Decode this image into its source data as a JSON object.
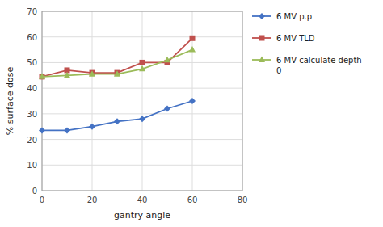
{
  "chart_data": {
    "type": "line",
    "x": [
      0,
      10,
      20,
      30,
      40,
      50,
      60
    ],
    "series": [
      {
        "name": "6 MV p.p",
        "color": "#4472C4",
        "marker": "diamond",
        "values": [
          23.5,
          23.5,
          25,
          27,
          28,
          32,
          35
        ]
      },
      {
        "name": "6 MV TLD",
        "color": "#C0504D",
        "marker": "square",
        "values": [
          44.5,
          47,
          46,
          46,
          50,
          50,
          59.5
        ]
      },
      {
        "name": "6 MV calculate depth\n0",
        "color": "#9BBB59",
        "marker": "triangle",
        "values": [
          44.5,
          45,
          45.5,
          45.5,
          47.5,
          51,
          55
        ]
      }
    ],
    "x_label": "gantry angle",
    "y_label": "% surface dose",
    "xlim": [
      0,
      80
    ],
    "ylim": [
      0,
      70
    ],
    "xticks": [
      0,
      20,
      40,
      60,
      80
    ],
    "yticks": [
      0,
      10,
      20,
      30,
      40,
      50,
      60,
      70
    ],
    "grid": true,
    "legend": "right"
  }
}
